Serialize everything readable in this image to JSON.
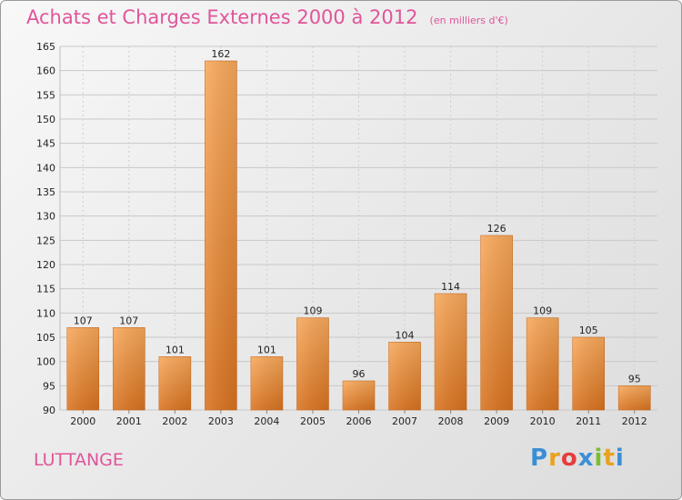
{
  "chart_data": {
    "type": "bar",
    "title": "Achats et Charges Externes 2000 à 2012",
    "subtitle": "(en milliers d'€)",
    "categories": [
      "2000",
      "2001",
      "2002",
      "2003",
      "2004",
      "2005",
      "2006",
      "2007",
      "2008",
      "2009",
      "2010",
      "2011",
      "2012"
    ],
    "values": [
      107,
      107,
      101,
      162,
      101,
      109,
      96,
      104,
      114,
      126,
      109,
      105,
      95
    ],
    "ylim": [
      90,
      165
    ],
    "yticks": [
      90,
      95,
      100,
      105,
      110,
      115,
      120,
      125,
      130,
      135,
      140,
      145,
      150,
      155,
      160,
      165
    ],
    "grid": true,
    "bar_color": "#ee8a35"
  },
  "commune": "LUTTANGE",
  "logo": {
    "letters": [
      "P",
      "r",
      "o",
      "x",
      "i",
      "t",
      "i"
    ],
    "colors": [
      "#3a8fd6",
      "#e8a21e",
      "#e53d3d",
      "#3a8fd6",
      "#7bbf2e",
      "#e8a21e",
      "#3a8fd6"
    ]
  }
}
